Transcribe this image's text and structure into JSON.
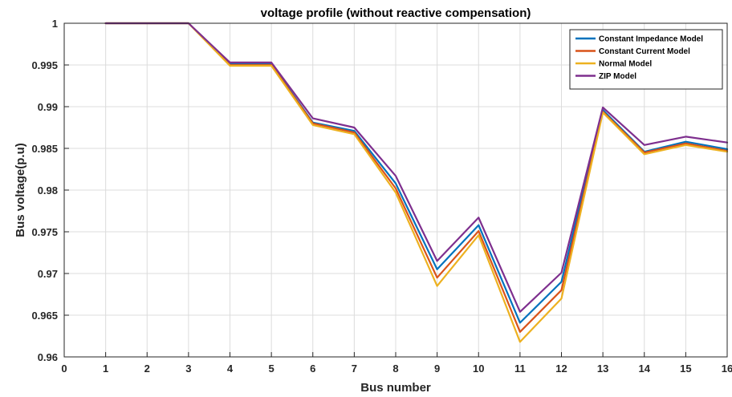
{
  "chart_data": {
    "type": "line",
    "title": "voltage profile (without reactive compensation)",
    "xlabel": "Bus number",
    "ylabel": "Bus voltage(p.u)",
    "xlim": [
      0,
      16
    ],
    "ylim": [
      0.96,
      1.0
    ],
    "xticks": [
      "0",
      "1",
      "2",
      "3",
      "4",
      "5",
      "6",
      "7",
      "8",
      "9",
      "10",
      "11",
      "12",
      "13",
      "14",
      "15",
      "16"
    ],
    "yticks": [
      "0.96",
      "0.965",
      "0.97",
      "0.975",
      "0.98",
      "0.985",
      "0.99",
      "0.995",
      "1"
    ],
    "grid": true,
    "legend_position": "top-right",
    "x": [
      1,
      2,
      3,
      4,
      5,
      6,
      7,
      8,
      9,
      10,
      11,
      12,
      13,
      14,
      15,
      16
    ],
    "series": [
      {
        "name": "Constant Impedance Model",
        "color": "#0072BD",
        "values": [
          1.0,
          1.0,
          1.0,
          0.9951,
          0.9951,
          0.9881,
          0.9871,
          0.9808,
          0.9705,
          0.9758,
          0.9641,
          0.969,
          0.9896,
          0.9846,
          0.9858,
          0.9849
        ]
      },
      {
        "name": "Constant Current Model",
        "color": "#D95319",
        "values": [
          1.0,
          1.0,
          1.0,
          0.995,
          0.995,
          0.988,
          0.9869,
          0.9802,
          0.9695,
          0.9751,
          0.963,
          0.968,
          0.9894,
          0.9845,
          0.9856,
          0.9847
        ]
      },
      {
        "name": "Normal Model",
        "color": "#EDB120",
        "values": [
          1.0,
          1.0,
          1.0,
          0.9949,
          0.9949,
          0.9878,
          0.9867,
          0.9797,
          0.9685,
          0.9746,
          0.9618,
          0.967,
          0.9893,
          0.9843,
          0.9854,
          0.9846
        ]
      },
      {
        "name": "ZIP Model",
        "color": "#7E2F8E",
        "values": [
          1.0,
          1.0,
          1.0,
          0.9953,
          0.9953,
          0.9886,
          0.9875,
          0.9817,
          0.9715,
          0.9767,
          0.9654,
          0.9701,
          0.9899,
          0.9854,
          0.9864,
          0.9857
        ]
      }
    ]
  }
}
